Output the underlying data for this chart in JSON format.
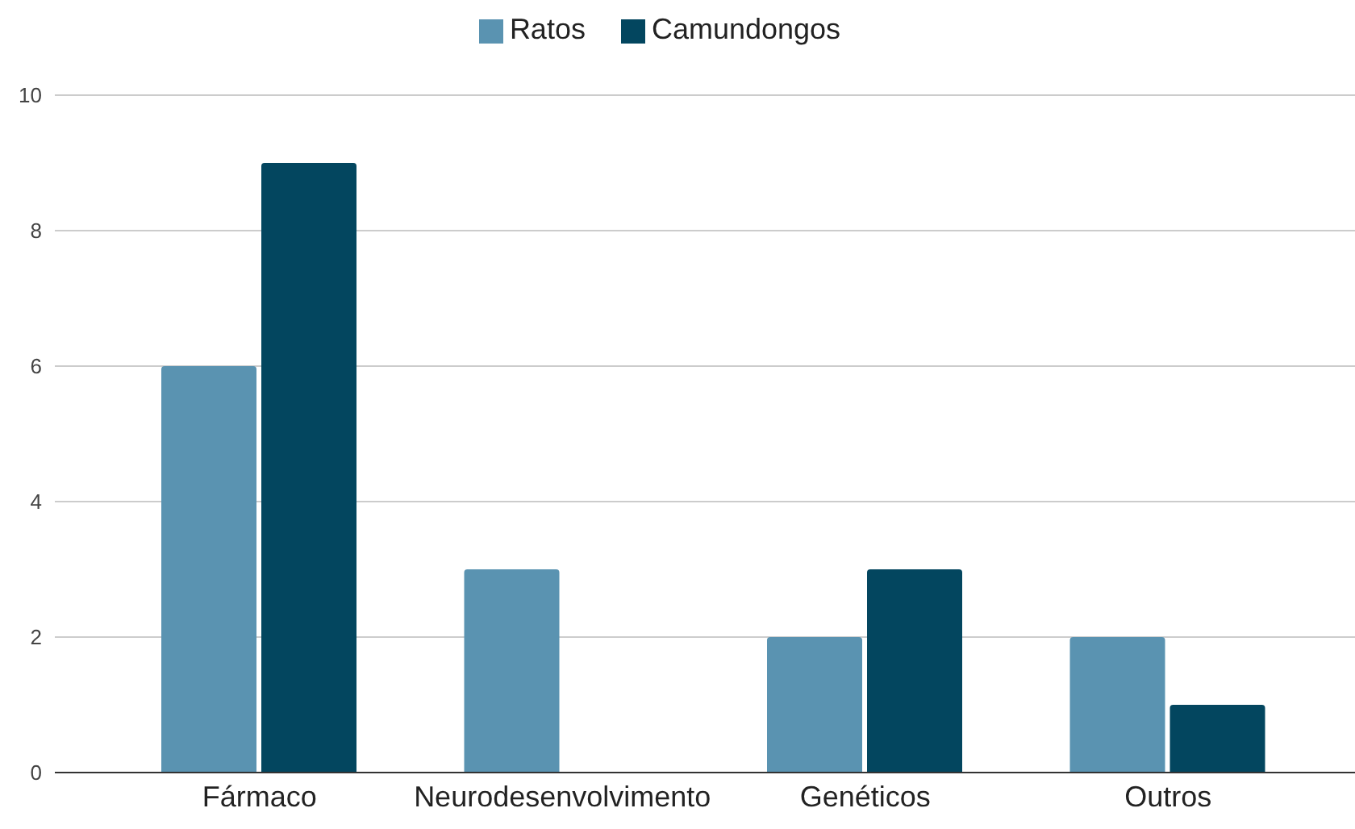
{
  "chart_data": {
    "type": "bar",
    "categories": [
      "Fármaco",
      "Neurodesenvolvimento",
      "Genéticos",
      "Outros"
    ],
    "series": [
      {
        "name": "Ratos",
        "color": "#5a93b1",
        "values": [
          6,
          3,
          2,
          2
        ]
      },
      {
        "name": "Camundongos",
        "color": "#03465f",
        "values": [
          9,
          0,
          3,
          1
        ]
      }
    ],
    "ylim": [
      0,
      10
    ],
    "yticks": [
      0,
      2,
      4,
      6,
      8,
      10
    ],
    "grid": "y",
    "legend": "top"
  }
}
